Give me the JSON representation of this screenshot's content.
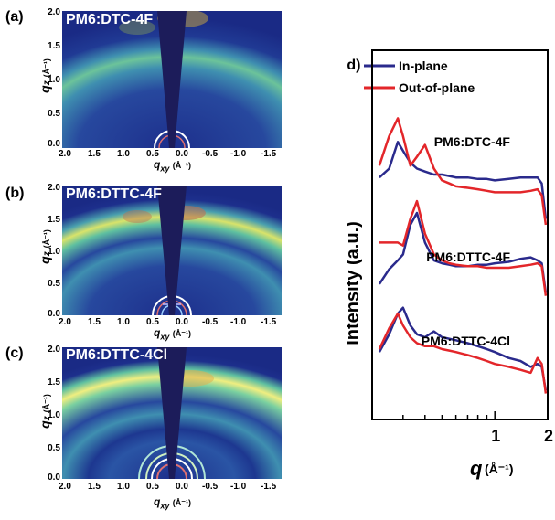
{
  "panels": [
    {
      "letter": "(a)",
      "title": "PM6:DTC-4F"
    },
    {
      "letter": "(b)",
      "title": "PM6:DTTC-4F"
    },
    {
      "letter": "(c)",
      "title": "PM6:DTTC-4Cl"
    }
  ],
  "gi_axes": {
    "y_ticks": [
      "2.0",
      "1.5",
      "1.0",
      "0.5",
      "0.0"
    ],
    "x_ticks": [
      "2.0",
      "1.5",
      "1.0",
      "0.5",
      "0.0",
      "-0.5",
      "-1.0",
      "-1.5"
    ],
    "y_label": "q",
    "y_sub": "z",
    "y_unit": "(Å⁻¹)",
    "x_label": "q",
    "x_sub": "xy",
    "x_unit": "(Å⁻¹)"
  },
  "line_panel": {
    "letter": "(d)",
    "legend": [
      "In-plane",
      "Out-of-plane"
    ],
    "colors": {
      "in_plane": "#2a2a8c",
      "out_of_plane": "#e3262a"
    },
    "y_label": "Intensity (a.u.)",
    "x_label": "q",
    "x_unit": "(Å⁻¹)",
    "x_ticks": [
      "1",
      "2"
    ],
    "curve_labels": [
      "PM6:DTC-4F",
      "PM6:DTTC-4F",
      "PM6:DTTC-4Cl"
    ]
  },
  "chart_data": {
    "type": "line",
    "xscale": "log",
    "xlim": [
      0.2,
      2
    ],
    "x": [
      0.22,
      0.25,
      0.28,
      0.3,
      0.33,
      0.36,
      0.4,
      0.45,
      0.5,
      0.55,
      0.6,
      0.7,
      0.8,
      0.9,
      1.0,
      1.2,
      1.4,
      1.6,
      1.75,
      1.85,
      1.95
    ],
    "series": [
      {
        "name": "In-plane",
        "group": "PM6:DTC-4F",
        "values": [
          7.9,
          8.2,
          9.1,
          8.8,
          8.4,
          8.2,
          8.1,
          8.0,
          8.0,
          7.95,
          7.9,
          7.9,
          7.85,
          7.85,
          7.8,
          7.85,
          7.9,
          7.9,
          7.9,
          7.7,
          6.5
        ]
      },
      {
        "name": "Out-of-plane",
        "group": "PM6:DTC-4F",
        "values": [
          8.3,
          9.3,
          9.9,
          9.3,
          8.3,
          8.6,
          9.0,
          8.2,
          7.8,
          7.7,
          7.6,
          7.55,
          7.5,
          7.45,
          7.4,
          7.4,
          7.4,
          7.45,
          7.5,
          7.3,
          6.3
        ]
      },
      {
        "name": "In-plane",
        "group": "PM6:DTTC-4F",
        "values": [
          4.3,
          4.8,
          5.1,
          5.3,
          6.3,
          6.7,
          5.7,
          5.1,
          5.0,
          4.95,
          4.9,
          4.9,
          4.95,
          4.95,
          5.0,
          5.05,
          5.15,
          5.2,
          5.1,
          5.0,
          4.0
        ]
      },
      {
        "name": "Out-of-plane",
        "group": "PM6:DTTC-4F",
        "values": [
          5.7,
          5.7,
          5.7,
          5.6,
          6.5,
          7.1,
          6.0,
          5.3,
          5.1,
          5.0,
          4.95,
          4.9,
          4.9,
          4.85,
          4.85,
          4.85,
          4.9,
          4.95,
          5.0,
          4.9,
          3.9
        ]
      },
      {
        "name": "In-plane",
        "group": "PM6:DTTC-4Cl",
        "values": [
          2.0,
          2.6,
          3.3,
          3.5,
          2.9,
          2.6,
          2.5,
          2.7,
          2.5,
          2.45,
          2.4,
          2.3,
          2.2,
          2.1,
          2.0,
          1.8,
          1.7,
          1.5,
          1.6,
          1.5,
          0.7
        ]
      },
      {
        "name": "Out-of-plane",
        "group": "PM6:DTTC-4Cl",
        "values": [
          2.1,
          2.8,
          3.3,
          2.9,
          2.5,
          2.3,
          2.2,
          2.2,
          2.1,
          2.05,
          2.0,
          1.9,
          1.8,
          1.7,
          1.6,
          1.5,
          1.4,
          1.3,
          1.8,
          1.6,
          0.6
        ]
      }
    ]
  }
}
